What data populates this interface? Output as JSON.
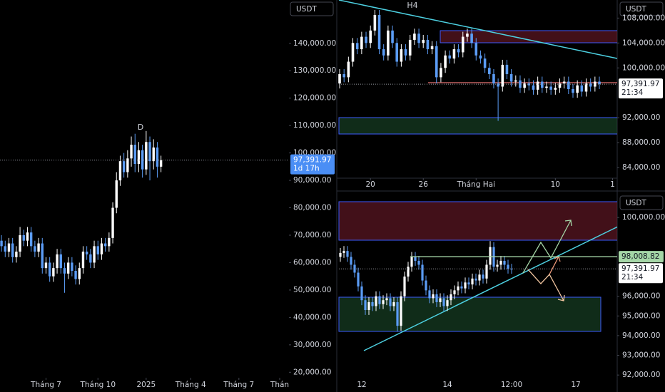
{
  "chart_data": [
    {
      "type": "candlestick",
      "currency": "USDT",
      "annotation": "D",
      "up_color": "#ffffff",
      "down_color": "#5b9cf6",
      "ylim": [
        18000,
        155800
      ],
      "xlim": [
        -0.4,
        77.5
      ],
      "yticks": [
        {
          "value": 140000,
          "label": "140,000.00"
        },
        {
          "value": 130000,
          "label": "130,000.00"
        },
        {
          "value": 120000,
          "label": "120,000.00"
        },
        {
          "value": 110000,
          "label": "110,000.00"
        },
        {
          "value": 100000,
          "label": "100,000.00"
        },
        {
          "value": 90000,
          "label": "90,000.00"
        },
        {
          "value": 80000,
          "label": "80,000.00"
        },
        {
          "value": 70000,
          "label": "70,000.00"
        },
        {
          "value": 60000,
          "label": "60,000.00"
        },
        {
          "value": 50000,
          "label": "50,000.00"
        },
        {
          "value": 40000,
          "label": "40,000.00"
        },
        {
          "value": 30000,
          "label": "30,000.00"
        },
        {
          "value": 20000,
          "label": "20,000.00"
        }
      ],
      "xticks": [
        {
          "value": 12,
          "label": "Tháng 7"
        },
        {
          "value": 26,
          "label": "Tháng 10"
        },
        {
          "value": 39,
          "label": "2025"
        },
        {
          "value": 51,
          "label": "Tháng 4"
        },
        {
          "value": 64,
          "label": "Tháng 7"
        },
        {
          "value": 75,
          "label": "Thán"
        }
      ],
      "last_price": {
        "value": 97391.97,
        "label": "97,391.97"
      },
      "countdown": "1d 17h",
      "open": [
        68000,
        66000,
        64000,
        67000,
        62000,
        64000,
        70000,
        68000,
        71000,
        66000,
        64000,
        67000,
        58000,
        60000,
        55000,
        58000,
        63000,
        58000,
        56000,
        60000,
        57000,
        54000,
        58000,
        64000,
        63000,
        60000,
        66000,
        63000,
        67000,
        66000,
        69000,
        80000,
        90000,
        97000,
        93000,
        98000,
        103000,
        96000,
        101000,
        94000,
        104000,
        97000,
        102000,
        95000
      ],
      "high": [
        70000,
        68000,
        69000,
        69000,
        66000,
        73000,
        72000,
        73000,
        73000,
        68000,
        69000,
        69000,
        62000,
        62000,
        60000,
        65000,
        65000,
        60000,
        62000,
        62000,
        59000,
        60000,
        66000,
        66000,
        65000,
        68000,
        68000,
        69000,
        69000,
        71000,
        82000,
        93000,
        99000,
        100000,
        101000,
        106000,
        107000,
        104000,
        103000,
        108000,
        106000,
        105000,
        104000,
        99000
      ],
      "low": [
        64000,
        62000,
        62000,
        60000,
        60000,
        62000,
        66000,
        66000,
        64000,
        62000,
        62000,
        56000,
        56000,
        53000,
        53000,
        56000,
        56000,
        49000,
        54000,
        55000,
        52000,
        52000,
        56000,
        61000,
        58000,
        58000,
        61000,
        61000,
        64000,
        64000,
        67000,
        78000,
        88000,
        91000,
        91000,
        95000,
        93000,
        93000,
        91000,
        92000,
        90000,
        94000,
        91000,
        93000
      ],
      "close": [
        66000,
        64000,
        67000,
        62000,
        64000,
        70000,
        68000,
        71000,
        66000,
        64000,
        67000,
        58000,
        60000,
        55000,
        58000,
        63000,
        58000,
        56000,
        60000,
        57000,
        54000,
        58000,
        64000,
        63000,
        60000,
        66000,
        63000,
        67000,
        66000,
        69000,
        80000,
        90000,
        97000,
        93000,
        98000,
        103000,
        96000,
        101000,
        94000,
        104000,
        97000,
        102000,
        95000,
        97392
      ]
    },
    {
      "type": "candlestick",
      "currency": "USDT",
      "title": "H4",
      "up_color": "#ffffff",
      "down_color": "#5b9cf6",
      "ylim": [
        82300,
        110900
      ],
      "xlim": [
        -0.65,
        63.05
      ],
      "yticks": [
        {
          "value": 108000,
          "label": "108,000.00"
        },
        {
          "value": 104000,
          "label": "104,000.00"
        },
        {
          "value": 100000,
          "label": "100,000.00"
        },
        {
          "value": 92000,
          "label": "92,000.00"
        },
        {
          "value": 88000,
          "label": "88,000.00"
        },
        {
          "value": 84000,
          "label": "84,000.00"
        }
      ],
      "xticks": [
        {
          "value": 7,
          "label": "20"
        },
        {
          "value": 19,
          "label": "26"
        },
        {
          "value": 31,
          "label": "Tháng Hai"
        },
        {
          "value": 49,
          "label": "10"
        },
        {
          "value": 62,
          "label": "1"
        }
      ],
      "last_price": {
        "value": 97391.97,
        "label": "97,391.97"
      },
      "countdown": "21:34",
      "open": [
        97500,
        99000,
        98500,
        101000,
        104000,
        103000,
        105000,
        104000,
        106000,
        108500,
        103000,
        102000,
        106000,
        104000,
        101000,
        103000,
        102000,
        104500,
        105500,
        104000,
        104500,
        103000,
        103500,
        98500,
        100000,
        102000,
        101500,
        103000,
        102500,
        105000,
        105500,
        104000,
        102000,
        101500,
        100000,
        99000,
        97500,
        97000,
        100500,
        99000,
        97800,
        98000,
        96800,
        97500,
        97200,
        96500,
        97800,
        96800,
        97000,
        96500,
        96800,
        97500,
        97800,
        96600,
        96000,
        97200,
        96200,
        97500,
        97000,
        97800
      ],
      "high": [
        99800,
        99800,
        101800,
        104800,
        104800,
        105800,
        105800,
        106800,
        109300,
        109300,
        103800,
        106800,
        106800,
        104800,
        103800,
        103800,
        105300,
        106300,
        106300,
        105300,
        105300,
        104300,
        104300,
        100800,
        102800,
        102800,
        103800,
        103800,
        105800,
        106300,
        106300,
        104800,
        102800,
        102300,
        100800,
        99800,
        98300,
        101300,
        101300,
        99800,
        98800,
        98800,
        98300,
        98300,
        98000,
        98600,
        98600,
        97800,
        97800,
        97600,
        98300,
        98600,
        98600,
        97400,
        98000,
        98000,
        98300,
        98300,
        98600,
        98600
      ],
      "low": [
        96700,
        97700,
        97700,
        100200,
        102200,
        102200,
        103200,
        103200,
        105200,
        102200,
        101200,
        101200,
        103200,
        100200,
        100200,
        101200,
        101200,
        103700,
        103200,
        103200,
        102200,
        102200,
        97500,
        97700,
        99200,
        100700,
        100700,
        101700,
        101700,
        104200,
        103200,
        101200,
        100700,
        99200,
        98200,
        96700,
        91500,
        96200,
        98200,
        97000,
        97000,
        96000,
        96000,
        96400,
        95700,
        95700,
        96000,
        96000,
        95700,
        95700,
        96000,
        96700,
        95800,
        95200,
        95200,
        95400,
        95400,
        96200,
        96200,
        96600
      ],
      "close": [
        99000,
        98500,
        101000,
        104000,
        103000,
        105000,
        104000,
        106000,
        108500,
        103000,
        102000,
        106000,
        104000,
        101000,
        103000,
        102000,
        104500,
        105500,
        104000,
        104500,
        103000,
        103500,
        98500,
        100000,
        102000,
        101500,
        103000,
        102500,
        105000,
        105500,
        104000,
        102000,
        101500,
        100000,
        99000,
        97500,
        97000,
        100500,
        99000,
        97800,
        98000,
        96800,
        97500,
        97200,
        96500,
        97800,
        96800,
        97000,
        96500,
        96800,
        97500,
        97800,
        96600,
        96000,
        97200,
        96200,
        97500,
        97000,
        97800,
        97392
      ]
    },
    {
      "type": "candlestick",
      "currency": "USDT",
      "up_color": "#ffffff",
      "down_color": "#5b9cf6",
      "ylim": [
        91500,
        101200
      ],
      "xlim": [
        -1,
        77.6
      ],
      "yticks": [
        {
          "value": 100000,
          "label": "100,000.00"
        },
        {
          "value": 96000,
          "label": "96,000.00"
        },
        {
          "value": 95000,
          "label": "95,000.00"
        },
        {
          "value": 94000,
          "label": "94,000.00"
        },
        {
          "value": 93000,
          "label": "93,000.00"
        },
        {
          "value": 92000,
          "label": "92,000.00"
        }
      ],
      "xticks": [
        {
          "value": 6,
          "label": "12"
        },
        {
          "value": 30,
          "label": "14"
        },
        {
          "value": 48,
          "label": "12:00"
        },
        {
          "value": 66,
          "label": "17"
        }
      ],
      "level": {
        "value": 98008.82,
        "label": "98,008.82"
      },
      "last_price": {
        "value": 97391.97,
        "label": "97,391.97"
      },
      "countdown": "21:34",
      "open": [
        98000,
        98200,
        98300,
        98000,
        97600,
        97200,
        96500,
        95800,
        95300,
        95700,
        95500,
        96000,
        95600,
        95800,
        95900,
        95500,
        95700,
        94500,
        96000,
        97000,
        97500,
        98000,
        97800,
        97600,
        96800,
        96300,
        95900,
        96100,
        95700,
        95900,
        95500,
        95800,
        96100,
        96300,
        96500,
        96400,
        96700,
        96600,
        96900,
        96800,
        97100,
        96900,
        97600,
        98500,
        97500,
        97600,
        97800,
        97600,
        97400
      ],
      "high": [
        98450,
        98550,
        98550,
        98250,
        97850,
        97450,
        96750,
        96050,
        95950,
        95950,
        96250,
        96250,
        96050,
        96150,
        96150,
        95950,
        95950,
        96250,
        97250,
        97750,
        98250,
        98250,
        98050,
        97850,
        97050,
        96550,
        96350,
        96350,
        96150,
        96150,
        96050,
        96350,
        96550,
        96750,
        96750,
        96950,
        96950,
        97150,
        97150,
        97350,
        97350,
        97850,
        98800,
        98750,
        97850,
        98050,
        98050,
        97850,
        97650
      ],
      "low": [
        97750,
        97950,
        97750,
        97350,
        96950,
        96250,
        95550,
        95050,
        95050,
        95250,
        95250,
        95350,
        95350,
        95550,
        95250,
        95250,
        94200,
        94250,
        95750,
        96750,
        97250,
        97550,
        97350,
        96550,
        96050,
        95650,
        95650,
        95450,
        95450,
        95250,
        95250,
        95550,
        95850,
        96050,
        96150,
        96150,
        96350,
        96350,
        96550,
        96550,
        96650,
        96650,
        97350,
        97250,
        97250,
        97350,
        97350,
        97150,
        97142
      ],
      "close": [
        98200,
        98300,
        98000,
        97600,
        97200,
        96500,
        95800,
        95300,
        95700,
        95500,
        96000,
        95600,
        95800,
        95900,
        95500,
        95700,
        94500,
        96000,
        97000,
        97500,
        98000,
        97800,
        97600,
        96800,
        96300,
        95900,
        96100,
        95700,
        95900,
        95500,
        95800,
        96100,
        96300,
        96500,
        96400,
        96700,
        96600,
        96900,
        96800,
        97100,
        96900,
        97600,
        98500,
        97500,
        97600,
        97800,
        97600,
        97400,
        97392
      ]
    }
  ]
}
